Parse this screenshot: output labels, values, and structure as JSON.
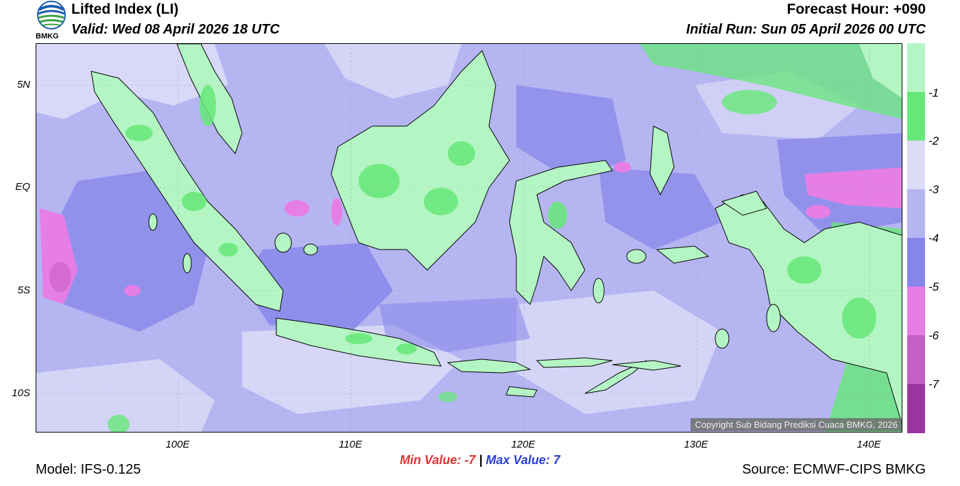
{
  "header": {
    "title": "Lifted Index (LI)",
    "valid": "Valid: Wed 08 April 2026 18 UTC",
    "forecast_hour": "Forecast Hour: +090",
    "initial_run": "Initial Run: Sun 05 April 2026 00 UTC",
    "logo_text": "BMKG"
  },
  "axes": {
    "lat_labels": [
      "5N",
      "EQ",
      "5S",
      "10S"
    ],
    "lon_labels": [
      "100E",
      "110E",
      "120E",
      "130E",
      "140E"
    ]
  },
  "colorbar": {
    "labels": [
      "-1",
      "-2",
      "-3",
      "-4",
      "-5",
      "-6",
      "-7"
    ],
    "colors": [
      "#b4f5c4",
      "#66e878",
      "#dcdcf8",
      "#b5b5f2",
      "#8585ea",
      "#e67ee6",
      "#c65fc6",
      "#9a35a0"
    ]
  },
  "stats": {
    "min_label": "Min Value:",
    "min_value": "-7",
    "separator": "|",
    "max_label": "Max Value:",
    "max_value": "7"
  },
  "footer": {
    "model": "Model: IFS-0.125",
    "source": "Source: ECMWF-CIPS BMKG",
    "copyright": "Copyright Sub Bidang Prediksi Cuaca BMKG, 2026"
  }
}
